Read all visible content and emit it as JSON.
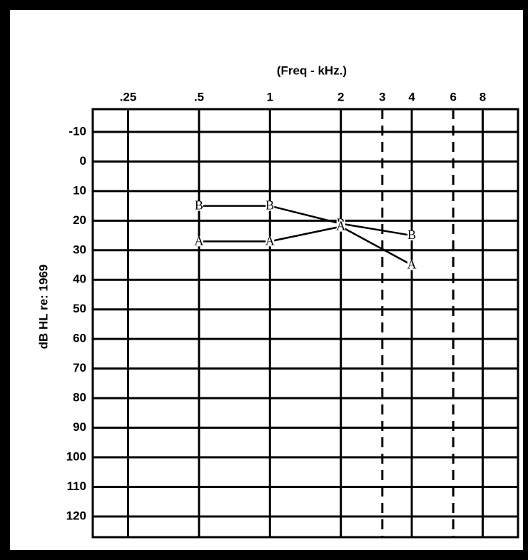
{
  "chart_data": {
    "type": "line",
    "x_axis_label": "(Freq - kHz.)",
    "y_axis_label": "dB HL re: 1969",
    "xscale": "log",
    "xlim": [
      0.177,
      11.3
    ],
    "xticks": [
      {
        "value": 0.25,
        "label": ".25"
      },
      {
        "value": 0.5,
        "label": ".5"
      },
      1,
      2,
      4,
      8
    ],
    "xticks_minor": [
      3,
      6
    ],
    "ylim": [
      -17.7,
      127
    ],
    "yinverted": true,
    "yticks": [
      -10,
      0,
      10,
      20,
      30,
      40,
      50,
      60,
      70,
      80,
      90,
      100,
      110,
      120
    ],
    "grid": true,
    "x": [
      0.5,
      1,
      2,
      4
    ],
    "series": [
      {
        "marker": "B",
        "color": "#000000",
        "values": [
          15,
          15,
          21,
          25
        ]
      },
      {
        "marker": "A",
        "color": "#000000",
        "values": [
          27,
          27,
          22,
          35
        ]
      }
    ]
  }
}
